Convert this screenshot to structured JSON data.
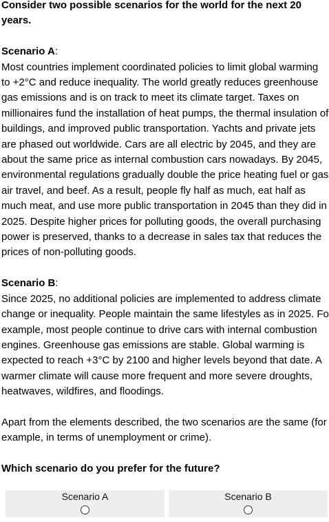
{
  "intro": "Consider two possible scenarios for the world for the next 20 years.",
  "scenario_a": {
    "title": "Scenario A",
    "colon": ":",
    "text": "Most countries implement coordinated policies to limit global warming to +2°C and reduce inequality. The world greatly reduces greenhouse gas emissions and is on track to meet its climate target. Taxes on millionaires fund the installation of heat pumps, the thermal insulation of buildings, and improved public transportation. Yachts and private jets are phased out worldwide. Cars are all electric by 2045, and they are about the same price as internal combustion cars nowadays. By 2045, environmental regulations gradually double the price heating fuel or gas air travel, and beef. As a result, people fly half as much, eat half as much meat, and use more public transportation in 2045 than they did in 2025. Despite higher prices for polluting goods, the overall purchasing power is preserved, thanks to a decrease in sales tax that reduces the prices of non-polluting goods."
  },
  "scenario_b": {
    "title": "Scenario B",
    "colon": ":",
    "text": "Since 2025, no additional policies are implemented to address climate change or inequality. People maintain the same lifestyles as in 2025. Fo example, most people continue to drive cars with internal combustion engines. Greenhouse gas emissions are stable. Global warming is expected to reach +3°C by 2100 and higher levels beyond that date. A warmer climate will cause more frequent and more severe droughts, heatwaves, wildfires, and floodings."
  },
  "apart": "Apart from the elements described, the two scenarios are the same (for example, in terms of unemployment or crime).",
  "question": "Which scenario do you prefer for the future?",
  "options": [
    {
      "label": "Scenario A",
      "selected": false
    },
    {
      "label": "Scenario B",
      "selected": false
    }
  ]
}
